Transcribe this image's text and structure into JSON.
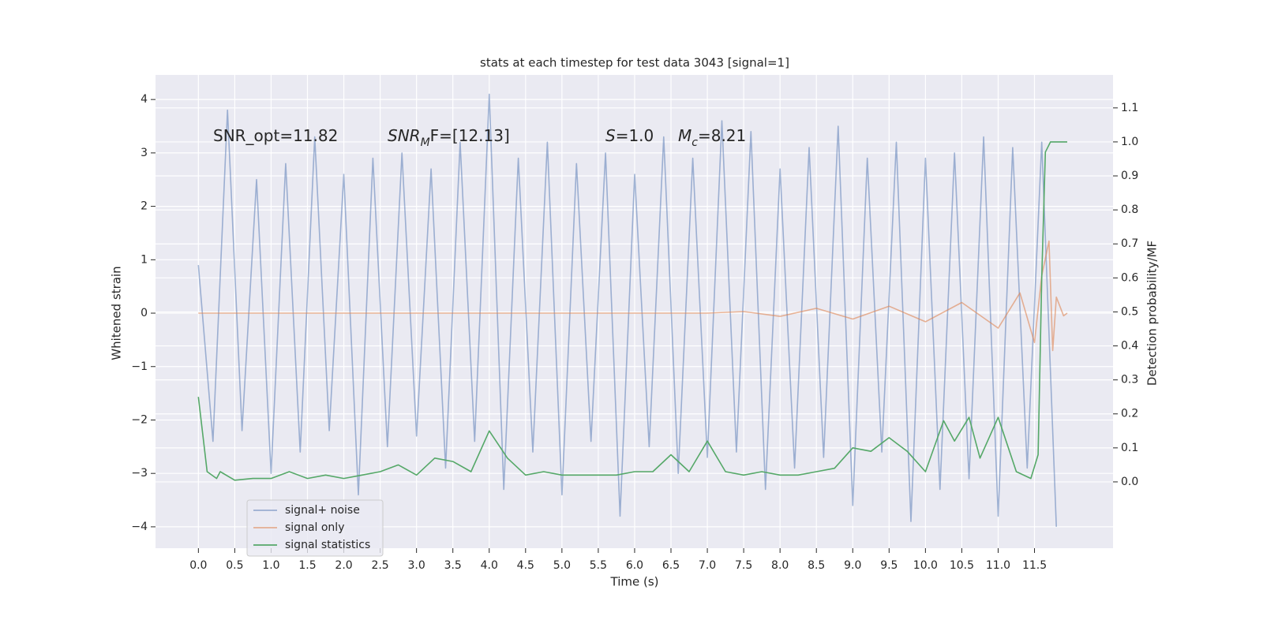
{
  "chart_data": {
    "type": "line",
    "title": "stats at each timestep for test data 3043 [signal=1]",
    "xlabel": "Time (s)",
    "ylabel": "Whitened strain",
    "y2label": "Detection probability/MF",
    "annotations": [
      {
        "segments": [
          {
            "text": "SNR_opt=11.82"
          }
        ]
      },
      {
        "segments": [
          {
            "text": "SNR",
            "style": "italic"
          },
          {
            "text": "M",
            "style": "italic-sub"
          },
          {
            "text": "F=[12.13]"
          }
        ]
      },
      {
        "segments": [
          {
            "text": "S",
            "style": "italic"
          },
          {
            "text": "=1.0"
          }
        ]
      },
      {
        "segments": [
          {
            "text": "M",
            "style": "italic"
          },
          {
            "text": "c",
            "style": "italic-sub"
          },
          {
            "text": "=8.21"
          }
        ]
      }
    ],
    "xlim": [
      -0.59,
      12.58
    ],
    "ylim": [
      -4.4,
      4.46
    ],
    "y2lim": [
      -0.195,
      1.197
    ],
    "xticks": [
      {
        "value": 0,
        "label": "0.0"
      },
      0.5,
      {
        "value": 1,
        "label": "1.0"
      },
      1.5,
      {
        "value": 2,
        "label": "2.0"
      },
      2.5,
      {
        "value": 3,
        "label": "3.0"
      },
      3.5,
      {
        "value": 4,
        "label": "4.0"
      },
      4.5,
      {
        "value": 5,
        "label": "5.0"
      },
      5.5,
      {
        "value": 6,
        "label": "6.0"
      },
      6.5,
      {
        "value": 7,
        "label": "7.0"
      },
      7.5,
      {
        "value": 8,
        "label": "8.0"
      },
      8.5,
      {
        "value": 9,
        "label": "9.0"
      },
      9.5,
      {
        "value": 10,
        "label": "10.0"
      },
      10.5,
      {
        "value": 11,
        "label": "11.0"
      },
      11.5
    ],
    "yticks": [
      {
        "value": -4,
        "label": "−4"
      },
      {
        "value": -3,
        "label": "−3"
      },
      {
        "value": -2,
        "label": "−2"
      },
      {
        "value": -1,
        "label": "−1"
      },
      0,
      1,
      2,
      3,
      4
    ],
    "y2ticks": [
      {
        "value": 0,
        "label": "0.0"
      },
      0.1,
      0.2,
      0.3,
      0.4,
      0.5,
      0.6,
      0.7,
      0.8,
      0.9,
      {
        "value": 1,
        "label": "1.0"
      },
      1.1
    ],
    "grid": true,
    "legend": "lower left",
    "series": [
      {
        "name": "signal+ noise",
        "color": "#4c72b0",
        "opacity": 0.5,
        "x": [
          0,
          0.2,
          0.4,
          0.6,
          0.8,
          1,
          1.2,
          1.4,
          1.6,
          1.8,
          2,
          2.2,
          2.4,
          2.6,
          2.8,
          3,
          3.2,
          3.4,
          3.6,
          3.8,
          4,
          4.2,
          4.4,
          4.6,
          4.8,
          5,
          5.2,
          5.4,
          5.6,
          5.8,
          6,
          6.2,
          6.4,
          6.6,
          6.8,
          7,
          7.2,
          7.4,
          7.6,
          7.8,
          8,
          8.2,
          8.4,
          8.6,
          8.8,
          9,
          9.2,
          9.4,
          9.6,
          9.8,
          10,
          10.2,
          10.4,
          10.6,
          10.8,
          11,
          11.2,
          11.4,
          11.6,
          11.8
        ],
        "values": [
          0.9,
          -2.4,
          3.8,
          -2.2,
          2.5,
          -3.0,
          2.8,
          -2.6,
          3.3,
          -2.2,
          2.6,
          -3.4,
          2.9,
          -2.5,
          3.0,
          -2.3,
          2.7,
          -2.9,
          3.2,
          -2.4,
          4.1,
          -3.3,
          2.9,
          -2.6,
          3.2,
          -3.4,
          2.8,
          -2.4,
          3.0,
          -3.8,
          2.6,
          -2.5,
          3.3,
          -3.0,
          2.9,
          -2.7,
          3.6,
          -2.6,
          3.4,
          -3.3,
          2.7,
          -2.9,
          3.1,
          -2.7,
          3.5,
          -3.6,
          2.9,
          -2.6,
          3.2,
          -3.9,
          2.9,
          -3.3,
          3.0,
          -3.1,
          3.3,
          -3.8,
          3.1,
          -2.9,
          3.2,
          -4.0
        ]
      },
      {
        "name": "signal only",
        "color": "#dd8452",
        "opacity": 0.6,
        "x": [
          0,
          7.0,
          7.5,
          8.0,
          8.5,
          9.0,
          9.5,
          10.0,
          10.5,
          11.0,
          11.3,
          11.5,
          11.6,
          11.7,
          11.75,
          11.8,
          11.9,
          11.95
        ],
        "values": [
          0,
          0,
          0.03,
          -0.06,
          0.09,
          -0.11,
          0.13,
          -0.16,
          0.2,
          -0.28,
          0.38,
          -0.55,
          0.7,
          1.35,
          -0.7,
          0.3,
          -0.05,
          0
        ]
      },
      {
        "name": "signal statistics",
        "color": "#55a868",
        "opacity": 1,
        "axis": "y2",
        "x": [
          0,
          0.12,
          0.25,
          0.3,
          0.5,
          0.75,
          1,
          1.25,
          1.5,
          1.75,
          2,
          2.25,
          2.5,
          2.75,
          3,
          3.25,
          3.5,
          3.75,
          4,
          4.25,
          4.5,
          4.75,
          5,
          5.25,
          5.5,
          5.75,
          6,
          6.25,
          6.5,
          6.75,
          7,
          7.25,
          7.5,
          7.75,
          8,
          8.25,
          8.5,
          8.75,
          9,
          9.25,
          9.5,
          9.75,
          10,
          10.25,
          10.4,
          10.6,
          10.75,
          11,
          11.25,
          11.45,
          11.55,
          11.6,
          11.65,
          11.72,
          11.95
        ],
        "values": [
          0.25,
          0.03,
          0.01,
          0.03,
          0.005,
          0.01,
          0.01,
          0.03,
          0.01,
          0.02,
          0.01,
          0.02,
          0.03,
          0.05,
          0.02,
          0.07,
          0.06,
          0.03,
          0.15,
          0.07,
          0.02,
          0.03,
          0.02,
          0.02,
          0.02,
          0.02,
          0.03,
          0.03,
          0.08,
          0.03,
          0.12,
          0.03,
          0.02,
          0.03,
          0.02,
          0.02,
          0.03,
          0.04,
          0.1,
          0.09,
          0.13,
          0.09,
          0.03,
          0.18,
          0.12,
          0.19,
          0.07,
          0.19,
          0.03,
          0.01,
          0.08,
          0.6,
          0.97,
          1.0,
          1.0
        ]
      }
    ]
  }
}
